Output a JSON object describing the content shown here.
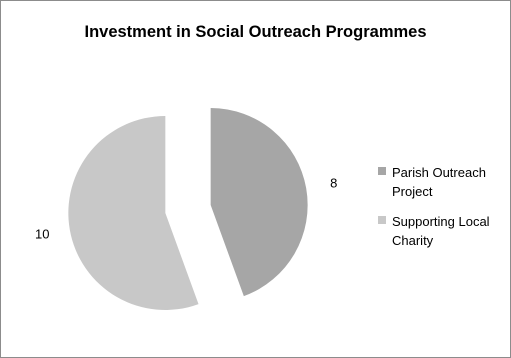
{
  "chart_data": {
    "type": "pie",
    "title": "Investment in Social Outreach Programmes",
    "slices": [
      {
        "label": "Parish Outreach Project",
        "legend_lines": [
          "Parish Outreach",
          "Project"
        ],
        "value": 8,
        "color": "#a6a6a6"
      },
      {
        "label": "Supporting Local Charity",
        "legend_lines": [
          "Supporting Local",
          "Charity"
        ],
        "value": 10,
        "color": "#c8c8c8"
      }
    ],
    "exploded": true,
    "legend_position": "right"
  }
}
